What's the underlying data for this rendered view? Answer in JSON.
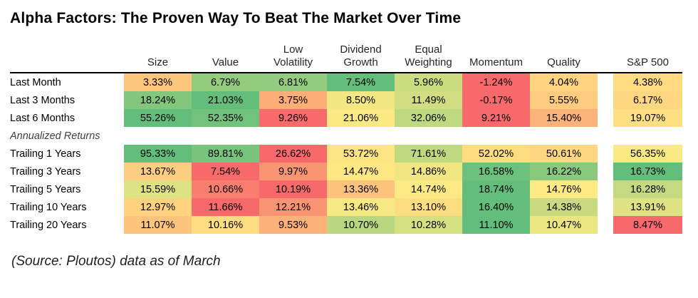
{
  "title": "Alpha Factors: The Proven Way To Beat The Market Over Time",
  "footer": "(Source: Ploutos) data as of March",
  "chart_data": {
    "type": "heatmap",
    "title": "Alpha Factors: The Proven Way To Beat The Market Over Time",
    "columns": [
      "Size",
      "Value",
      "Low Volatility",
      "Dividend Growth",
      "Equal Weighting",
      "Momentum",
      "Quality",
      "S&P 500"
    ],
    "header_lines": [
      [
        "Size"
      ],
      [
        "Value"
      ],
      [
        "Low",
        "Volatility"
      ],
      [
        "Dividend",
        "Growth"
      ],
      [
        "Equal",
        "Weighting"
      ],
      [
        "Momentum"
      ],
      [
        "Quality"
      ],
      [
        "S&P 500"
      ]
    ],
    "section_label": "Annualized Returns",
    "color_scale": {
      "low": "#F8696B",
      "mid": "#FFEB84",
      "high": "#63BE7B",
      "applied": "per-row"
    },
    "rows": [
      {
        "label": "Last Month",
        "values": [
          3.33,
          6.79,
          6.81,
          7.54,
          5.96,
          -1.24,
          4.04,
          4.38
        ],
        "display": [
          "3.33%",
          "6.79%",
          "6.81%",
          "7.54%",
          "5.96%",
          "-1.24%",
          "4.04%",
          "4.38%"
        ],
        "colors": [
          "#FDC67D",
          "#94CC7E",
          "#93CC7E",
          "#63BE7B",
          "#CBDC81",
          "#F8696B",
          "#FED480",
          "#FEDB81"
        ]
      },
      {
        "label": "Last 3 Months",
        "values": [
          18.24,
          21.03,
          3.75,
          8.5,
          11.49,
          -0.17,
          5.55,
          6.17
        ],
        "display": [
          "18.24%",
          "21.03%",
          "3.75%",
          "8.50%",
          "11.49%",
          "-0.17%",
          "5.55%",
          "6.17%"
        ],
        "colors": [
          "#83C77D",
          "#63BE7B",
          "#FCAD78",
          "#F2E783",
          "#D0DD81",
          "#F8696B",
          "#FDCC7E",
          "#FED780"
        ]
      },
      {
        "label": "Last 6 Months",
        "values": [
          55.26,
          52.35,
          9.26,
          21.06,
          32.06,
          9.21,
          15.4,
          19.07
        ],
        "display": [
          "55.26%",
          "52.35%",
          "9.26%",
          "21.06%",
          "32.06%",
          "9.21%",
          "15.40%",
          "19.07%"
        ],
        "colors": [
          "#63BE7B",
          "#70C27C",
          "#F86A6B",
          "#FBEA84",
          "#BFD980",
          "#F8696B",
          "#FCB379",
          "#FEDF82"
        ]
      },
      {
        "label": "Annualized Returns",
        "section": true
      },
      {
        "label": "Trailing 1 Years",
        "values": [
          95.33,
          89.81,
          26.62,
          53.72,
          71.61,
          52.02,
          50.61,
          56.35
        ],
        "display": [
          "95.33%",
          "89.81%",
          "26.62%",
          "53.72%",
          "71.61%",
          "52.02%",
          "50.61%",
          "56.35%"
        ],
        "colors": [
          "#63BE7B",
          "#78C47C",
          "#F8696B",
          "#FEE583",
          "#BFD980",
          "#FEDD81",
          "#FED780",
          "#FAEA84"
        ]
      },
      {
        "label": "Trailing 3 Years",
        "values": [
          13.67,
          7.54,
          9.97,
          14.47,
          14.86,
          16.58,
          16.22,
          16.73
        ],
        "display": [
          "13.67%",
          "7.54%",
          "9.97%",
          "14.47%",
          "14.86%",
          "16.58%",
          "16.22%",
          "16.73%"
        ],
        "colors": [
          "#FDCE7F",
          "#F8696B",
          "#FA9574",
          "#FFE783",
          "#F0E783",
          "#6EC17C",
          "#8AC97D",
          "#63BE7B"
        ]
      },
      {
        "label": "Trailing 5 Years",
        "values": [
          15.59,
          10.66,
          10.19,
          13.36,
          14.74,
          18.74,
          14.76,
          16.28
        ],
        "display": [
          "15.59%",
          "10.66%",
          "10.19%",
          "13.36%",
          "14.74%",
          "18.74%",
          "14.76%",
          "16.28%"
        ],
        "colors": [
          "#DEE182",
          "#F97E70",
          "#F8696B",
          "#FDC37C",
          "#FEEA84",
          "#63BE7B",
          "#FFEA84",
          "#C3DA81"
        ]
      },
      {
        "label": "Trailing 10 Years",
        "values": [
          12.97,
          11.66,
          12.21,
          13.46,
          13.1,
          16.4,
          14.38,
          13.91
        ],
        "display": [
          "12.97%",
          "11.66%",
          "12.21%",
          "13.46%",
          "13.10%",
          "16.40%",
          "14.38%",
          "13.91%"
        ],
        "colors": [
          "#FED27F",
          "#F8696B",
          "#FA9573",
          "#F6E883",
          "#FEDD81",
          "#63BE7B",
          "#C8DB81",
          "#DFE282"
        ]
      },
      {
        "label": "Trailing 20 Years",
        "values": [
          11.07,
          10.16,
          9.53,
          10.7,
          10.28,
          11.1,
          10.47,
          8.47
        ],
        "display": [
          "11.07%",
          "10.16%",
          "9.53%",
          "10.70%",
          "10.28%",
          "11.10%",
          "10.47%",
          "8.47%"
        ],
        "colors": [
          "#FCC47D",
          "#FEDC81",
          "#FCB179",
          "#B9D780",
          "#D5E081",
          "#63BE7B",
          "#EBE682",
          "#F8696B"
        ]
      }
    ]
  }
}
